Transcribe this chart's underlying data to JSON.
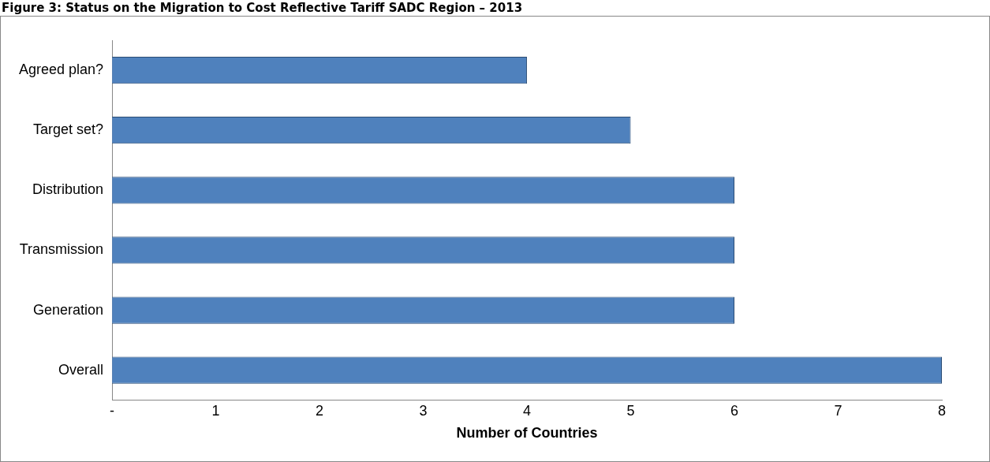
{
  "chart_data": {
    "type": "bar",
    "orientation": "horizontal",
    "title": "Figure 3: Status on the Migration to Cost Reflective Tariff SADC Region – 2013",
    "xlabel": "Number of Countries",
    "categories": [
      "Agreed plan?",
      "Target set?",
      "Distribution",
      "Transmission",
      "Generation",
      "Overall"
    ],
    "values": [
      4,
      5,
      6,
      6,
      6,
      8
    ],
    "color": "#4f81bd",
    "xlim": [
      0,
      8
    ],
    "xticks": [
      {
        "value": 0,
        "label": "-"
      },
      1,
      2,
      3,
      4,
      5,
      6,
      7,
      8
    ],
    "grid": false,
    "legend": false
  }
}
